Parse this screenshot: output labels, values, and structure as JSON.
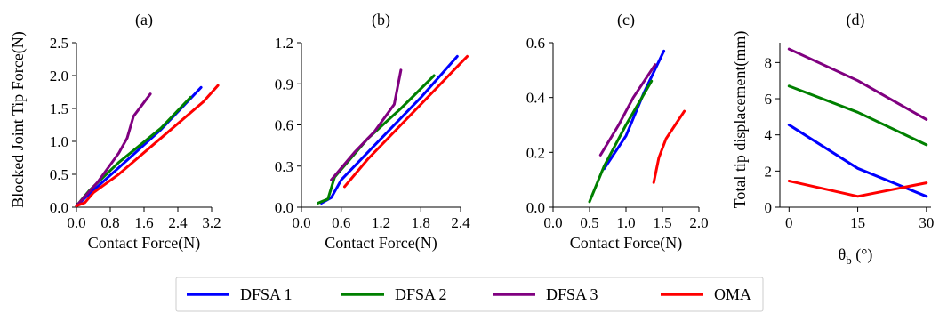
{
  "legend": [
    {
      "name": "DFSA 1",
      "color": "#0000ff"
    },
    {
      "name": "DFSA 2",
      "color": "#008000"
    },
    {
      "name": "DFSA 3",
      "color": "#800080"
    },
    {
      "name": "OMA",
      "color": "#ff0000"
    }
  ],
  "chart_data": [
    {
      "type": "line",
      "title": "(a)",
      "xlabel": "Contact Force(N)",
      "ylabel": "Blocked Joint Tip Force(N)",
      "xlim": [
        0,
        3.2
      ],
      "ylim": [
        0,
        2.5
      ],
      "xticks": [
        0.0,
        0.8,
        1.6,
        2.4,
        3.2
      ],
      "xtick_labels": [
        "0.0",
        "0.8",
        "1.6",
        "2.4",
        "3.2"
      ],
      "yticks": [
        0.0,
        0.5,
        1.0,
        1.5,
        2.0,
        2.5
      ],
      "ytick_labels": [
        "0.0",
        "0.5",
        "1.0",
        "1.5",
        "2.0",
        "2.5"
      ],
      "series": [
        {
          "name": "DFSA 1",
          "color": "#0000ff",
          "points": [
            [
              0.0,
              0.02
            ],
            [
              0.3,
              0.2
            ],
            [
              1.0,
              0.6
            ],
            [
              2.0,
              1.18
            ],
            [
              2.95,
              1.82
            ]
          ]
        },
        {
          "name": "DFSA 2",
          "color": "#008000",
          "points": [
            [
              0.0,
              0.02
            ],
            [
              0.3,
              0.25
            ],
            [
              1.0,
              0.68
            ],
            [
              2.0,
              1.2
            ],
            [
              2.7,
              1.67
            ]
          ]
        },
        {
          "name": "DFSA 3",
          "color": "#800080",
          "points": [
            [
              0.0,
              0.02
            ],
            [
              0.5,
              0.38
            ],
            [
              1.0,
              0.82
            ],
            [
              1.2,
              1.05
            ],
            [
              1.35,
              1.38
            ],
            [
              1.75,
              1.72
            ]
          ]
        },
        {
          "name": "OMA",
          "color": "#ff0000",
          "points": [
            [
              0.0,
              0.02
            ],
            [
              0.2,
              0.07
            ],
            [
              0.4,
              0.22
            ],
            [
              1.0,
              0.5
            ],
            [
              2.0,
              1.05
            ],
            [
              3.0,
              1.6
            ],
            [
              3.35,
              1.85
            ]
          ]
        }
      ]
    },
    {
      "type": "line",
      "title": "(b)",
      "xlabel": "Contact Force(N)",
      "ylabel": "",
      "xlim": [
        0,
        2.4
      ],
      "ylim": [
        0,
        1.2
      ],
      "xticks": [
        0.0,
        0.6,
        1.2,
        1.8,
        2.4
      ],
      "xtick_labels": [
        "0.0",
        "0.6",
        "1.2",
        "1.8",
        "2.4"
      ],
      "yticks": [
        0.0,
        0.3,
        0.6,
        0.9,
        1.2
      ],
      "ytick_labels": [
        "0.0",
        "0.3",
        "0.6",
        "0.9",
        "1.2"
      ],
      "series": [
        {
          "name": "DFSA 1",
          "color": "#0000ff",
          "points": [
            [
              0.3,
              0.03
            ],
            [
              0.45,
              0.07
            ],
            [
              0.6,
              0.2
            ],
            [
              1.2,
              0.5
            ],
            [
              1.8,
              0.8
            ],
            [
              2.35,
              1.1
            ]
          ]
        },
        {
          "name": "DFSA 2",
          "color": "#008000",
          "points": [
            [
              0.25,
              0.03
            ],
            [
              0.4,
              0.06
            ],
            [
              0.5,
              0.22
            ],
            [
              1.0,
              0.5
            ],
            [
              1.5,
              0.72
            ],
            [
              2.0,
              0.96
            ]
          ]
        },
        {
          "name": "DFSA 3",
          "color": "#800080",
          "points": [
            [
              0.45,
              0.2
            ],
            [
              0.8,
              0.4
            ],
            [
              1.1,
              0.55
            ],
            [
              1.4,
              0.75
            ],
            [
              1.5,
              1.0
            ]
          ]
        },
        {
          "name": "OMA",
          "color": "#ff0000",
          "points": [
            [
              0.65,
              0.15
            ],
            [
              1.0,
              0.35
            ],
            [
              1.5,
              0.6
            ],
            [
              2.0,
              0.85
            ],
            [
              2.3,
              1.0
            ],
            [
              2.5,
              1.1
            ]
          ]
        }
      ]
    },
    {
      "type": "line",
      "title": "(c)",
      "xlabel": "Contact Force(N)",
      "ylabel": "",
      "xlim": [
        0,
        2.0
      ],
      "ylim": [
        0,
        0.6
      ],
      "xticks": [
        0.0,
        0.5,
        1.0,
        1.5,
        2.0
      ],
      "xtick_labels": [
        "0.0",
        "0.5",
        "1.0",
        "1.5",
        "2.0"
      ],
      "yticks": [
        0.0,
        0.2,
        0.4,
        0.6
      ],
      "ytick_labels": [
        "0.0",
        "0.2",
        "0.4",
        "0.6"
      ],
      "series": [
        {
          "name": "DFSA 1",
          "color": "#0000ff",
          "points": [
            [
              0.7,
              0.14
            ],
            [
              1.0,
              0.26
            ],
            [
              1.25,
              0.42
            ],
            [
              1.52,
              0.57
            ]
          ]
        },
        {
          "name": "DFSA 2",
          "color": "#008000",
          "points": [
            [
              0.5,
              0.02
            ],
            [
              0.7,
              0.15
            ],
            [
              1.0,
              0.3
            ],
            [
              1.35,
              0.46
            ]
          ]
        },
        {
          "name": "DFSA 3",
          "color": "#800080",
          "points": [
            [
              0.65,
              0.19
            ],
            [
              0.9,
              0.3
            ],
            [
              1.1,
              0.4
            ],
            [
              1.4,
              0.52
            ]
          ]
        },
        {
          "name": "OMA",
          "color": "#ff0000",
          "points": [
            [
              1.38,
              0.09
            ],
            [
              1.45,
              0.18
            ],
            [
              1.55,
              0.25
            ],
            [
              1.8,
              0.35
            ]
          ]
        }
      ]
    },
    {
      "type": "line",
      "title": "(d)",
      "xlabel": "θb (°)",
      "xlabel_main": "θ",
      "xlabel_sub": "b",
      "xlabel_tail": " (°)",
      "ylabel": "Total tip displacement(mm)",
      "xlim": [
        -2,
        31
      ],
      "ylim": [
        0,
        9.1
      ],
      "xticks": [
        0,
        15,
        30
      ],
      "xtick_labels": [
        "0",
        "15",
        "30"
      ],
      "yticks": [
        0,
        2,
        4,
        6,
        8
      ],
      "ytick_labels": [
        "0",
        "2",
        "4",
        "6",
        "8"
      ],
      "series": [
        {
          "name": "DFSA 1",
          "color": "#0000ff",
          "points": [
            [
              0,
              4.55
            ],
            [
              15,
              2.15
            ],
            [
              30,
              0.6
            ]
          ]
        },
        {
          "name": "DFSA 2",
          "color": "#008000",
          "points": [
            [
              0,
              6.7
            ],
            [
              15,
              5.25
            ],
            [
              30,
              3.45
            ]
          ]
        },
        {
          "name": "DFSA 3",
          "color": "#800080",
          "points": [
            [
              0,
              8.75
            ],
            [
              15,
              7.0
            ],
            [
              30,
              4.85
            ]
          ]
        },
        {
          "name": "OMA",
          "color": "#ff0000",
          "points": [
            [
              0,
              1.45
            ],
            [
              15,
              0.6
            ],
            [
              30,
              1.35
            ]
          ]
        }
      ]
    }
  ]
}
